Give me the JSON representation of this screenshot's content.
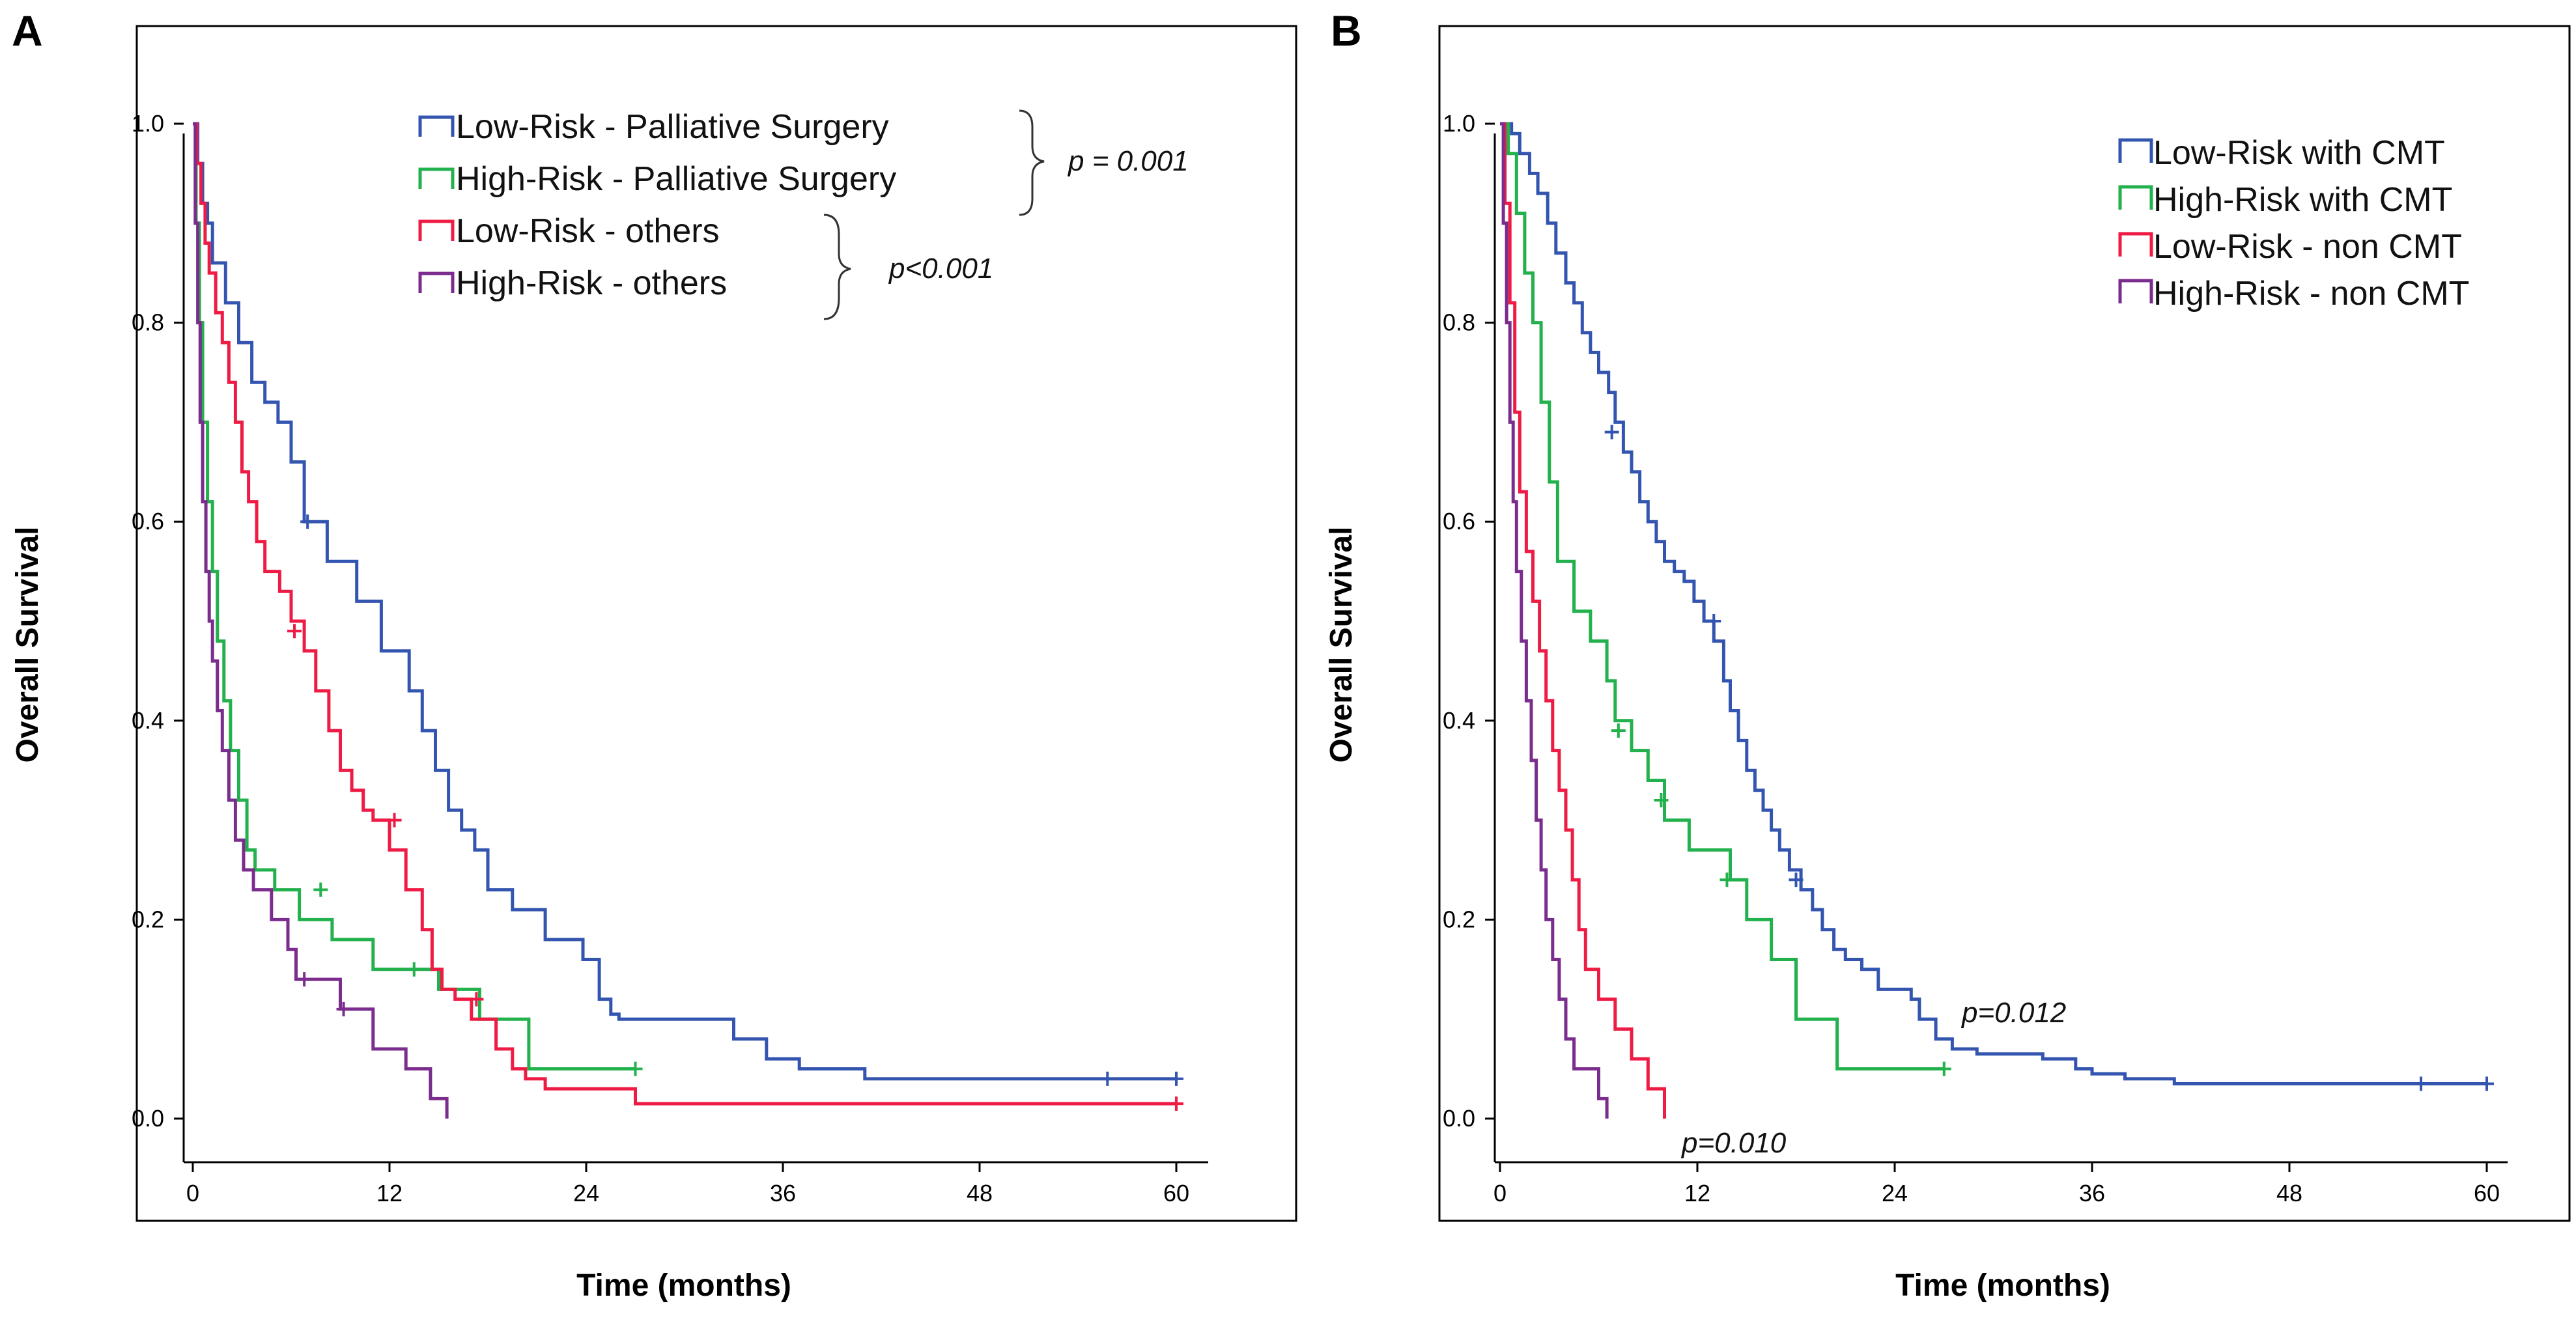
{
  "chart_data": [
    {
      "panel": "A",
      "type": "line",
      "subtype": "kaplan-meier",
      "xlabel": "Time (months)",
      "ylabel": "Overall Survival",
      "xlim": [
        0,
        60
      ],
      "ylim": [
        0,
        1
      ],
      "xticks": [
        0,
        12,
        24,
        36,
        48,
        60
      ],
      "yticks": [
        0.0,
        0.2,
        0.4,
        0.6,
        0.8,
        1.0
      ],
      "xtick_labels": [
        "0",
        "12",
        "24",
        "36",
        "48",
        "60"
      ],
      "ytick_labels": [
        "0.0",
        "0.2",
        "0.4",
        "0.6",
        "0.8",
        "1.0"
      ],
      "legend_position": "top-right",
      "series": [
        {
          "name": "Low-Risk - Palliative Surgery",
          "color": "#3355b0",
          "x": [
            0,
            0.3,
            0.6,
            0.9,
            1.2,
            2.0,
            2.8,
            3.6,
            4.4,
            5.2,
            6.0,
            6.8,
            8.2,
            10.0,
            11.5,
            13.2,
            14.0,
            14.8,
            15.6,
            16.4,
            17.2,
            18.0,
            19.5,
            21.5,
            23.8,
            24.8,
            25.5,
            26.0,
            27.5,
            33.0,
            35.0,
            37.0,
            41.0,
            55.0,
            60.0
          ],
          "y": [
            1.0,
            0.96,
            0.92,
            0.9,
            0.86,
            0.82,
            0.78,
            0.74,
            0.72,
            0.7,
            0.66,
            0.6,
            0.56,
            0.52,
            0.47,
            0.43,
            0.39,
            0.35,
            0.31,
            0.29,
            0.27,
            0.23,
            0.21,
            0.18,
            0.16,
            0.12,
            0.105,
            0.1,
            0.1,
            0.08,
            0.06,
            0.05,
            0.04,
            0.04,
            0.04
          ],
          "censored": [
            {
              "x": 7.0,
              "y": 0.6
            },
            {
              "x": 55.8,
              "y": 0.04
            },
            {
              "x": 60.0,
              "y": 0.04
            }
          ]
        },
        {
          "name": "High-Risk - Palliative Surgery",
          "color": "#22b14c",
          "x": [
            0,
            0.2,
            0.4,
            0.6,
            0.9,
            1.2,
            1.5,
            1.9,
            2.3,
            2.8,
            3.3,
            3.8,
            5.0,
            6.5,
            8.5,
            11.0,
            15.0,
            17.5,
            20.5,
            27.0
          ],
          "y": [
            1.0,
            0.9,
            0.8,
            0.7,
            0.62,
            0.55,
            0.48,
            0.42,
            0.37,
            0.32,
            0.27,
            0.25,
            0.23,
            0.2,
            0.18,
            0.15,
            0.13,
            0.1,
            0.05,
            0.05
          ],
          "censored": [
            {
              "x": 7.8,
              "y": 0.23
            },
            {
              "x": 13.5,
              "y": 0.15
            },
            {
              "x": 27.0,
              "y": 0.05
            }
          ]
        },
        {
          "name": "Low-Risk - others",
          "color": "#ee1c45",
          "x": [
            0,
            0.25,
            0.5,
            0.75,
            1.0,
            1.4,
            1.8,
            2.2,
            2.6,
            3.0,
            3.4,
            3.9,
            4.4,
            5.3,
            6.0,
            6.8,
            7.5,
            8.3,
            9.0,
            9.7,
            10.4,
            11.0,
            12.0,
            13.0,
            14.0,
            14.6,
            15.2,
            16.0,
            17.0,
            18.5,
            19.5,
            20.3,
            21.5,
            22.5,
            27.0,
            60.0
          ],
          "y": [
            1.0,
            0.96,
            0.92,
            0.88,
            0.85,
            0.81,
            0.78,
            0.74,
            0.7,
            0.65,
            0.62,
            0.58,
            0.55,
            0.53,
            0.5,
            0.47,
            0.43,
            0.39,
            0.35,
            0.33,
            0.31,
            0.3,
            0.27,
            0.23,
            0.19,
            0.15,
            0.13,
            0.12,
            0.1,
            0.07,
            0.05,
            0.04,
            0.03,
            0.03,
            0.015,
            0.015
          ],
          "censored": [
            {
              "x": 6.2,
              "y": 0.49
            },
            {
              "x": 12.3,
              "y": 0.3
            },
            {
              "x": 17.3,
              "y": 0.12
            },
            {
              "x": 60.0,
              "y": 0.015
            }
          ]
        },
        {
          "name": "High-Risk - others",
          "color": "#7b2d8e",
          "x": [
            0,
            0.15,
            0.3,
            0.45,
            0.6,
            0.8,
            1.0,
            1.2,
            1.5,
            1.8,
            2.2,
            2.6,
            3.1,
            3.7,
            4.8,
            5.8,
            6.3,
            7.0,
            9.0,
            11.0,
            13.0,
            14.5,
            15.5
          ],
          "y": [
            1.0,
            0.9,
            0.8,
            0.7,
            0.62,
            0.55,
            0.5,
            0.46,
            0.41,
            0.37,
            0.32,
            0.28,
            0.25,
            0.23,
            0.2,
            0.17,
            0.14,
            0.14,
            0.11,
            0.07,
            0.05,
            0.02,
            0.0
          ],
          "censored": [
            {
              "x": 6.8,
              "y": 0.14
            },
            {
              "x": 9.2,
              "y": 0.11
            }
          ]
        }
      ],
      "annotations": [
        {
          "text": "p = 0.001",
          "groups": [
            "Low-Risk - Palliative Surgery",
            "High-Risk - Palliative Surgery"
          ]
        },
        {
          "text": "p<0.001",
          "groups": [
            "Low-Risk - others",
            "High-Risk - others"
          ]
        }
      ]
    },
    {
      "panel": "B",
      "type": "line",
      "subtype": "kaplan-meier",
      "xlabel": "Time (months)",
      "ylabel": "Overall Survival",
      "xlim": [
        0,
        60
      ],
      "ylim": [
        0,
        1
      ],
      "xticks": [
        0,
        12,
        24,
        36,
        48,
        60
      ],
      "yticks": [
        0.0,
        0.2,
        0.4,
        0.6,
        0.8,
        1.0
      ],
      "xtick_labels": [
        "0",
        "12",
        "24",
        "36",
        "48",
        "60"
      ],
      "ytick_labels": [
        "0.0",
        "0.2",
        "0.4",
        "0.6",
        "0.8",
        "1.0"
      ],
      "legend_position": "top-right",
      "series": [
        {
          "name": "Low-Risk with CMT",
          "color": "#3355b0",
          "x": [
            0,
            0.7,
            1.2,
            1.8,
            2.3,
            2.9,
            3.4,
            4.0,
            4.5,
            5.0,
            5.5,
            6.0,
            6.6,
            7.0,
            7.5,
            8.0,
            8.5,
            9.0,
            9.5,
            10.0,
            10.6,
            11.2,
            11.8,
            12.4,
            13.0,
            13.6,
            14.0,
            14.5,
            15.0,
            15.5,
            16.0,
            16.5,
            17.0,
            17.6,
            18.3,
            19.0,
            19.6,
            20.3,
            21.0,
            22.0,
            23.0,
            24.0,
            25.0,
            25.5,
            26.5,
            27.5,
            29.0,
            31.0,
            33.0,
            35.0,
            36.0,
            38.0,
            41.0,
            60.0
          ],
          "y": [
            1.0,
            0.99,
            0.97,
            0.95,
            0.93,
            0.9,
            0.87,
            0.84,
            0.82,
            0.79,
            0.77,
            0.75,
            0.73,
            0.7,
            0.67,
            0.65,
            0.62,
            0.6,
            0.58,
            0.56,
            0.55,
            0.54,
            0.52,
            0.5,
            0.48,
            0.44,
            0.41,
            0.38,
            0.35,
            0.33,
            0.31,
            0.29,
            0.27,
            0.25,
            0.23,
            0.21,
            0.19,
            0.17,
            0.16,
            0.15,
            0.13,
            0.13,
            0.12,
            0.1,
            0.08,
            0.07,
            0.065,
            0.065,
            0.06,
            0.05,
            0.045,
            0.04,
            0.035,
            0.035
          ],
          "censored": [
            {
              "x": 6.8,
              "y": 0.69
            },
            {
              "x": 13.0,
              "y": 0.5
            },
            {
              "x": 18.0,
              "y": 0.24
            },
            {
              "x": 56.0,
              "y": 0.035
            },
            {
              "x": 60.0,
              "y": 0.035
            }
          ]
        },
        {
          "name": "High-Risk with CMT",
          "color": "#22b14c",
          "x": [
            0,
            0.5,
            1.0,
            1.5,
            2.0,
            2.5,
            3.0,
            3.5,
            4.5,
            5.5,
            6.5,
            7.0,
            8.0,
            9.0,
            10.0,
            11.5,
            14.0,
            15.0,
            16.5,
            18.0,
            20.5,
            27.0
          ],
          "y": [
            1.0,
            0.97,
            0.91,
            0.85,
            0.8,
            0.72,
            0.64,
            0.56,
            0.51,
            0.48,
            0.44,
            0.4,
            0.37,
            0.34,
            0.3,
            0.27,
            0.24,
            0.2,
            0.16,
            0.1,
            0.05,
            0.05
          ],
          "censored": [
            {
              "x": 7.2,
              "y": 0.39
            },
            {
              "x": 9.8,
              "y": 0.32
            },
            {
              "x": 13.8,
              "y": 0.24
            },
            {
              "x": 27.0,
              "y": 0.05
            }
          ]
        },
        {
          "name": "Low-Risk - non CMT",
          "color": "#ee1c45",
          "x": [
            0,
            0.3,
            0.6,
            0.9,
            1.2,
            1.6,
            2.0,
            2.4,
            2.8,
            3.2,
            3.6,
            4.0,
            4.4,
            4.8,
            5.2,
            6.0,
            7.0,
            8.0,
            9.0,
            10.0
          ],
          "y": [
            1.0,
            0.92,
            0.82,
            0.71,
            0.63,
            0.57,
            0.52,
            0.47,
            0.42,
            0.37,
            0.33,
            0.29,
            0.24,
            0.19,
            0.15,
            0.12,
            0.09,
            0.06,
            0.03,
            0.0
          ]
        },
        {
          "name": "High-Risk - non CMT",
          "color": "#7b2d8e",
          "x": [
            0,
            0.2,
            0.4,
            0.6,
            0.8,
            1.0,
            1.3,
            1.6,
            1.9,
            2.2,
            2.5,
            2.8,
            3.2,
            3.6,
            4.0,
            4.5,
            5.2,
            6.0,
            6.5
          ],
          "y": [
            1.0,
            0.9,
            0.8,
            0.7,
            0.62,
            0.55,
            0.48,
            0.42,
            0.36,
            0.3,
            0.25,
            0.2,
            0.16,
            0.12,
            0.08,
            0.05,
            0.05,
            0.02,
            0.0
          ]
        }
      ],
      "annotations": [
        {
          "text": "p=0.012",
          "position": "right of blue/green curves"
        },
        {
          "text": "p=0.010",
          "position": "below red/purple curves"
        }
      ]
    }
  ]
}
